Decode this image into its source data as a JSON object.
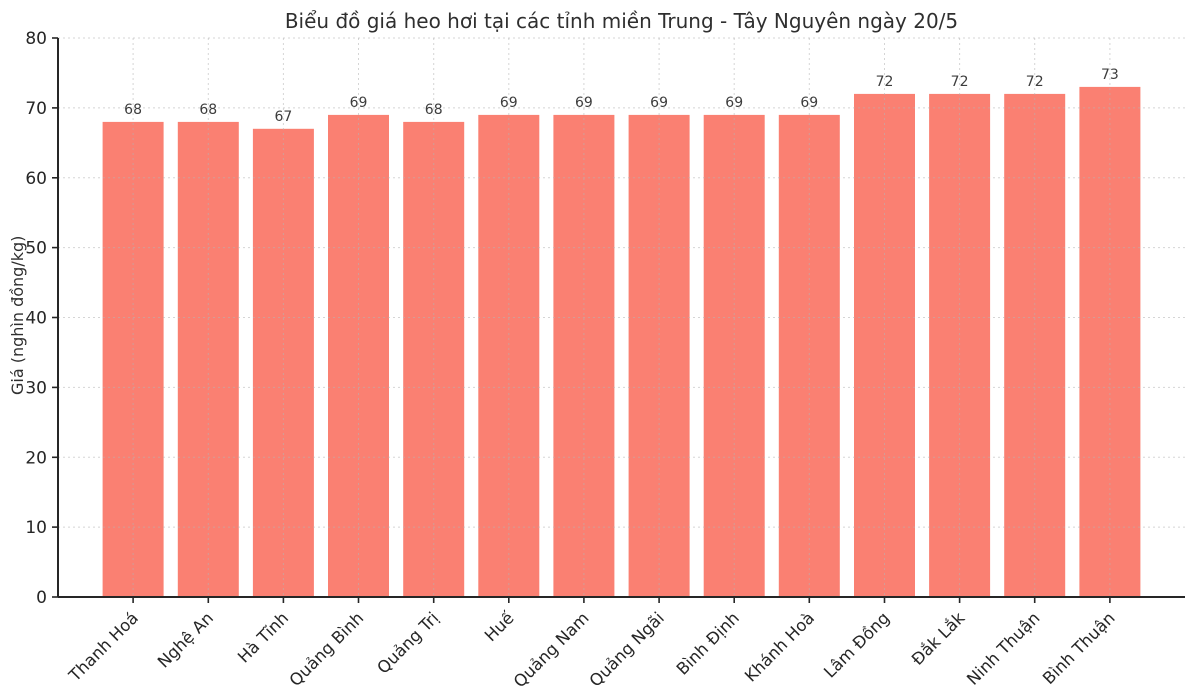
{
  "chart_data": {
    "type": "bar",
    "title": "Biểu đồ giá heo hơi tại các tỉnh miền Trung - Tây Nguyên ngày 20/5",
    "xlabel": "",
    "ylabel": "Giá (nghìn đồng/kg)",
    "categories": [
      "Thanh Hoá",
      "Nghệ An",
      "Hà Tĩnh",
      "Quảng Bình",
      "Quảng Trị",
      "Huế",
      "Quảng Nam",
      "Quảng Ngãi",
      "Bình Định",
      "Khánh Hoà",
      "Lâm Đồng",
      "Đắk Lắk",
      "Ninh Thuận",
      "Bình Thuận"
    ],
    "values": [
      68,
      68,
      67,
      69,
      68,
      69,
      69,
      69,
      69,
      69,
      72,
      72,
      72,
      73
    ],
    "ylim": [
      0,
      80
    ],
    "yticks": [
      0,
      10,
      20,
      30,
      40,
      50,
      60,
      70,
      80
    ],
    "bar_color": "#FA8072",
    "grid": true,
    "grid_style": "dotted",
    "legend": "none",
    "value_labels": true,
    "colors": {
      "bar": "#FA8072",
      "spine": "#262626",
      "grid": "#b4b4b4",
      "tick_label": "#262626",
      "value_label": "#3d3d3d",
      "title": "#2f2f2f"
    }
  }
}
